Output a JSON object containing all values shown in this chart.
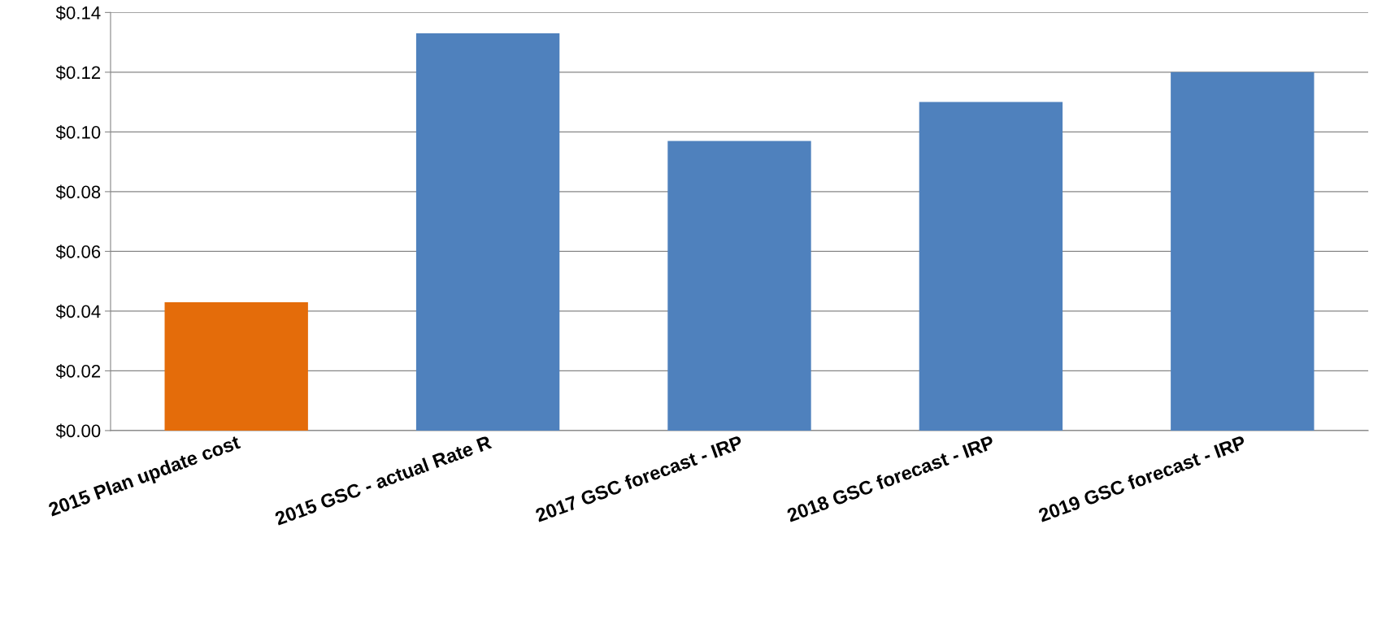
{
  "chart_data": {
    "type": "bar",
    "categories": [
      "2015 Plan update cost",
      "2015 GSC - actual Rate R",
      "2017 GSC forecast - IRP",
      "2018 GSC forecast - IRP",
      "2019 GSC forecast - IRP"
    ],
    "values": [
      0.043,
      0.133,
      0.097,
      0.11,
      0.12
    ],
    "colors": [
      "#e46c0a",
      "#4f81bd",
      "#4f81bd",
      "#4f81bd",
      "#4f81bd"
    ],
    "ylim": [
      0,
      0.14
    ],
    "yticks": [
      {
        "value": 0,
        "label": "$0.00"
      },
      {
        "value": 0.02,
        "label": "$0.02"
      },
      {
        "value": 0.04,
        "label": "$0.04"
      },
      {
        "value": 0.06,
        "label": "$0.06"
      },
      {
        "value": 0.08,
        "label": "$0.08"
      },
      {
        "value": 0.1,
        "label": "$0.10"
      },
      {
        "value": 0.12,
        "label": "$0.12"
      },
      {
        "value": 0.14,
        "label": "$0.14"
      }
    ],
    "grid": "y"
  }
}
